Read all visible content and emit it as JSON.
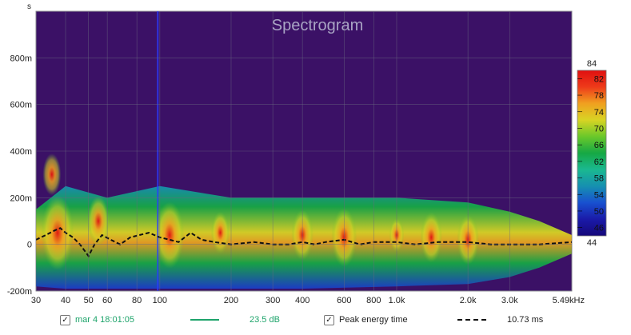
{
  "chart_data": {
    "type": "heatmap",
    "title": "Spectrogram",
    "ylabel": "s",
    "x_scale": "log",
    "x_unit": "Hz",
    "xlim": [
      30,
      5490
    ],
    "ylim": [
      -0.2,
      1.0
    ],
    "x_ticks": [
      {
        "value": 30,
        "label": "30"
      },
      {
        "value": 40,
        "label": "40"
      },
      {
        "value": 50,
        "label": "50"
      },
      {
        "value": 60,
        "label": "60"
      },
      {
        "value": 80,
        "label": "80"
      },
      {
        "value": 100,
        "label": "100"
      },
      {
        "value": 200,
        "label": "200"
      },
      {
        "value": 300,
        "label": "300"
      },
      {
        "value": 400,
        "label": "400"
      },
      {
        "value": 600,
        "label": "600"
      },
      {
        "value": 800,
        "label": "800"
      },
      {
        "value": 1000,
        "label": "1.0k"
      },
      {
        "value": 2000,
        "label": "2.0k"
      },
      {
        "value": 3000,
        "label": "3.0k"
      },
      {
        "value": 5490,
        "label": "5.49kHz"
      }
    ],
    "y_ticks": [
      {
        "value": -0.2,
        "label": "-200m"
      },
      {
        "value": 0,
        "label": "0"
      },
      {
        "value": 0.2,
        "label": "200m"
      },
      {
        "value": 0.4,
        "label": "400m"
      },
      {
        "value": 0.6,
        "label": "600m"
      },
      {
        "value": 0.8,
        "label": "800m"
      }
    ],
    "grid": true,
    "colorbar": {
      "min": 44,
      "max": 84,
      "ticks": [
        46,
        50,
        54,
        58,
        62,
        66,
        70,
        74,
        78,
        82
      ],
      "stops": [
        "#16087a",
        "#1a1aa8",
        "#1850d0",
        "#1690b0",
        "#1ab890",
        "#16a844",
        "#6ac82a",
        "#d8d424",
        "#f0a020",
        "#ee3a1a",
        "#e01010"
      ]
    },
    "peak_energy_time": {
      "x": [
        30,
        33,
        36,
        38,
        40,
        43,
        46,
        50,
        53,
        57,
        62,
        68,
        75,
        82,
        90,
        100,
        110,
        120,
        135,
        150,
        170,
        200,
        250,
        300,
        350,
        400,
        450,
        500,
        600,
        700,
        800,
        1000,
        1200,
        1500,
        2000,
        2500,
        3000,
        4000,
        5490
      ],
      "y": [
        0.02,
        0.04,
        0.06,
        0.07,
        0.05,
        0.03,
        0.0,
        -0.05,
        0.0,
        0.04,
        0.02,
        0.0,
        0.03,
        0.04,
        0.05,
        0.03,
        0.02,
        0.01,
        0.05,
        0.02,
        0.01,
        0.0,
        0.01,
        0.0,
        0.0,
        0.01,
        0.0,
        0.01,
        0.02,
        0.0,
        0.01,
        0.01,
        0.0,
        0.01,
        0.01,
        0.0,
        0.0,
        0.0,
        0.01
      ]
    },
    "vertical_marker": {
      "x": 98,
      "color": "#2b3cff"
    },
    "background_color": "#3b1166",
    "response_band": {
      "x": [
        30,
        40,
        60,
        100,
        200,
        400,
        1000,
        2000,
        3000,
        4000,
        5490
      ],
      "top": [
        0.15,
        0.25,
        0.2,
        0.25,
        0.2,
        0.2,
        0.2,
        0.18,
        0.14,
        0.1,
        0.04
      ],
      "bottom": [
        -0.18,
        -0.19,
        -0.19,
        -0.19,
        -0.19,
        -0.19,
        -0.18,
        -0.17,
        -0.14,
        -0.1,
        -0.04
      ]
    },
    "hot_spots": [
      {
        "x": 37,
        "y": 0.05,
        "level": 82
      },
      {
        "x": 35,
        "y": 0.3,
        "level": 74
      },
      {
        "x": 55,
        "y": 0.1,
        "level": 76
      },
      {
        "x": 110,
        "y": 0.04,
        "level": 80
      },
      {
        "x": 180,
        "y": 0.05,
        "level": 74
      },
      {
        "x": 400,
        "y": 0.04,
        "level": 76
      },
      {
        "x": 600,
        "y": 0.03,
        "level": 78
      },
      {
        "x": 1000,
        "y": 0.04,
        "level": 72
      },
      {
        "x": 1400,
        "y": 0.03,
        "level": 76
      },
      {
        "x": 2000,
        "y": 0.02,
        "level": 76
      }
    ]
  },
  "legend": {
    "measurement_name": "mar 4 18:01:05",
    "measurement_value": "23.5 dB",
    "measurement_color": "#1ea46b",
    "overlay_name": "Peak energy time",
    "overlay_value": "10.73 ms",
    "check_mark": "✓"
  }
}
